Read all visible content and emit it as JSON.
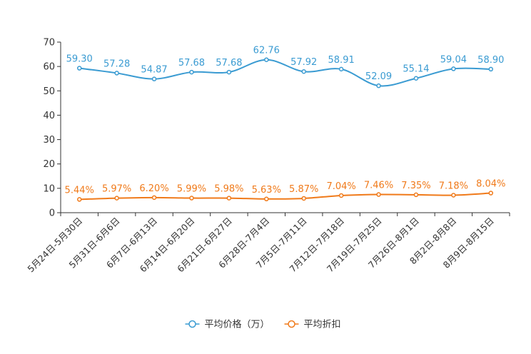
{
  "chart_data": {
    "type": "line",
    "title": "",
    "xlabel": "",
    "ylabel": "",
    "ylim": [
      0,
      70
    ],
    "yticks": [
      0,
      10,
      20,
      30,
      40,
      50,
      60,
      70
    ],
    "grid": false,
    "legend_position": "bottom-center",
    "categories": [
      "5月24日-5月30日",
      "5月31日-6月6日",
      "6月7日-6月13日",
      "6月14日-6月20日",
      "6月21日-6月27日",
      "6月28日-7月4日",
      "7月5日-7月11日",
      "7月12日-7月18日",
      "7月19日-7月25日",
      "7月26日-8月1日",
      "8月2日-8月8日",
      "8月9日-8月15日"
    ],
    "series": [
      {
        "name": "平均价格（万）",
        "color": "#3a9bd2",
        "values": [
          59.3,
          57.28,
          54.87,
          57.68,
          57.68,
          62.76,
          57.92,
          58.91,
          52.09,
          55.14,
          59.04,
          58.9
        ],
        "labels": [
          "59.30",
          "57.28",
          "54.87",
          "57.68",
          "57.68",
          "62.76",
          "57.92",
          "58.91",
          "52.09",
          "55.14",
          "59.04",
          "58.90"
        ]
      },
      {
        "name": "平均折扣",
        "color": "#f07a1a",
        "values": [
          5.44,
          5.97,
          6.2,
          5.99,
          5.98,
          5.63,
          5.87,
          7.04,
          7.46,
          7.35,
          7.18,
          8.04
        ],
        "labels": [
          "5.44%",
          "5.97%",
          "6.20%",
          "5.99%",
          "5.98%",
          "5.63%",
          "5.87%",
          "7.04%",
          "7.46%",
          "7.35%",
          "7.18%",
          "8.04%"
        ]
      }
    ]
  }
}
